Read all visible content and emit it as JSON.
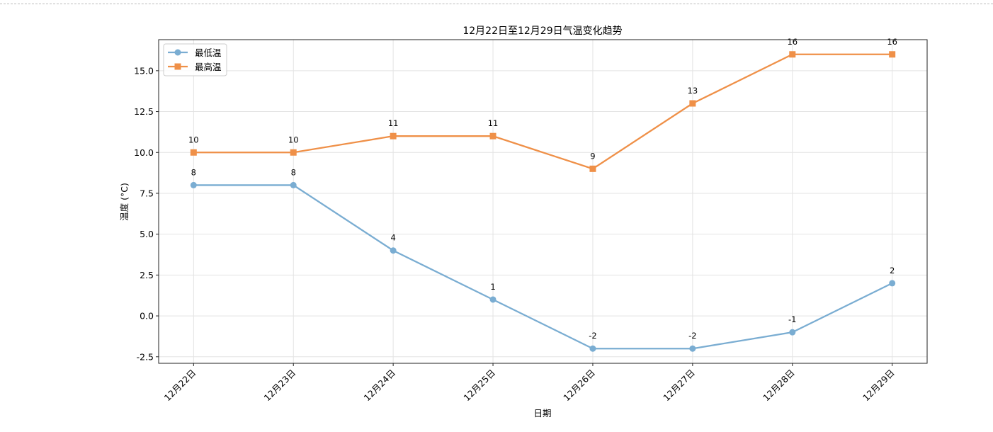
{
  "chart_data": {
    "type": "line",
    "title": "12月22日至12月29日气温变化趋势",
    "xlabel": "日期",
    "ylabel": "温度 (°C)",
    "categories": [
      "12月22日",
      "12月23日",
      "12月24日",
      "12月25日",
      "12月26日",
      "12月27日",
      "12月28日",
      "12月29日"
    ],
    "series": [
      {
        "name": "最低温",
        "values": [
          8,
          8,
          4,
          1,
          -2,
          -2,
          -1,
          2
        ],
        "color": "#7aadd2",
        "marker": "circle"
      },
      {
        "name": "最高温",
        "values": [
          10,
          10,
          11,
          11,
          9,
          13,
          16,
          16
        ],
        "color": "#ef9048",
        "marker": "square"
      }
    ],
    "ylim": [
      -2.9,
      16.9
    ],
    "yticks": [
      "-2.5",
      "0.0",
      "2.5",
      "5.0",
      "7.5",
      "10.0",
      "12.5",
      "15.0"
    ],
    "grid": true,
    "legend": "top-left",
    "data_labels": true
  }
}
